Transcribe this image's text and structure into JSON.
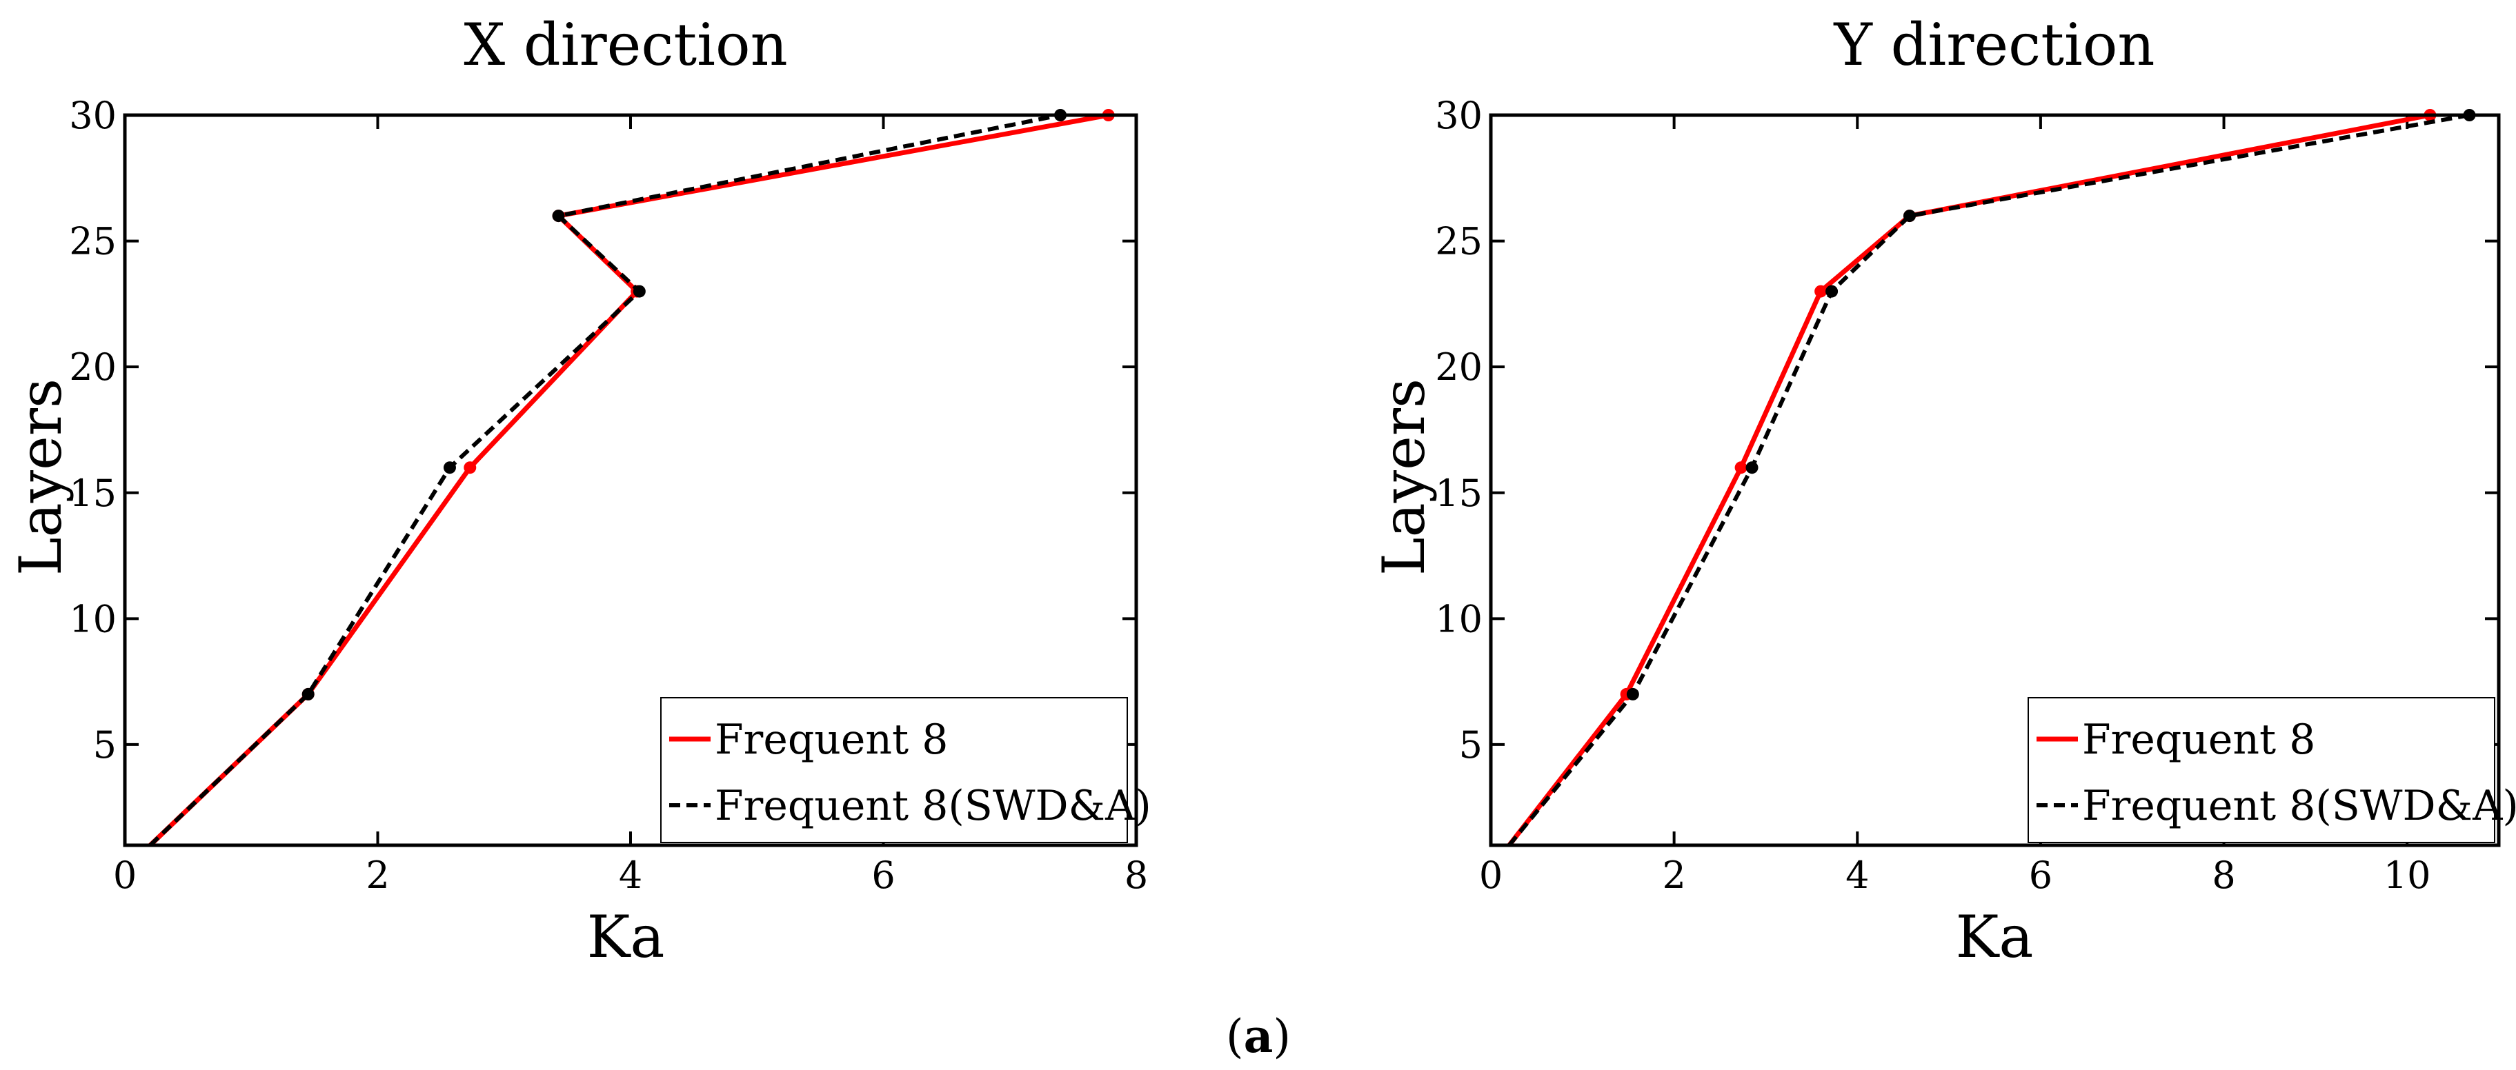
{
  "caption": {
    "open": "(",
    "letter": "a",
    "close": ")"
  },
  "chart_data": [
    {
      "type": "line",
      "title": "X direction",
      "xlabel": "Ka",
      "ylabel": "Layers",
      "xlim": [
        0,
        8
      ],
      "ylim": [
        1,
        30
      ],
      "xticks": [
        "0",
        "2",
        "4",
        "6",
        "8"
      ],
      "yticks": [
        "5",
        "10",
        "15",
        "20",
        "25",
        "30"
      ],
      "legend_position": "bottom-right",
      "series": [
        {
          "name": "Frequent 8",
          "color": "#ff0000",
          "style": "solid",
          "points": [
            [
              0.2,
              1
            ],
            [
              1.45,
              7
            ],
            [
              2.73,
              16
            ],
            [
              4.05,
              23
            ],
            [
              3.43,
              26
            ],
            [
              7.78,
              30
            ]
          ]
        },
        {
          "name": "Frequent 8(SWD&A)",
          "color": "#000000",
          "style": "dashed",
          "points": [
            [
              0.2,
              1
            ],
            [
              1.45,
              7
            ],
            [
              2.57,
              16
            ],
            [
              4.07,
              23
            ],
            [
              3.43,
              26
            ],
            [
              7.4,
              30
            ]
          ]
        }
      ]
    },
    {
      "type": "line",
      "title": "Y direction",
      "xlabel": "Ka",
      "ylabel": "Layers",
      "xlim": [
        0,
        11
      ],
      "ylim": [
        1,
        30
      ],
      "xticks": [
        "0",
        "2",
        "4",
        "6",
        "8",
        "10"
      ],
      "yticks": [
        "5",
        "10",
        "15",
        "20",
        "25",
        "30"
      ],
      "legend_position": "bottom-right",
      "series": [
        {
          "name": "Frequent 8",
          "color": "#ff0000",
          "style": "solid",
          "points": [
            [
              0.2,
              1
            ],
            [
              1.48,
              7
            ],
            [
              2.73,
              16
            ],
            [
              3.6,
              23
            ],
            [
              4.57,
              26
            ],
            [
              10.25,
              30
            ]
          ]
        },
        {
          "name": "Frequent 8(SWD&A)",
          "color": "#000000",
          "style": "dashed",
          "points": [
            [
              0.2,
              1
            ],
            [
              1.55,
              7
            ],
            [
              2.85,
              16
            ],
            [
              3.72,
              23
            ],
            [
              4.57,
              26
            ],
            [
              10.68,
              30
            ]
          ]
        }
      ]
    }
  ]
}
